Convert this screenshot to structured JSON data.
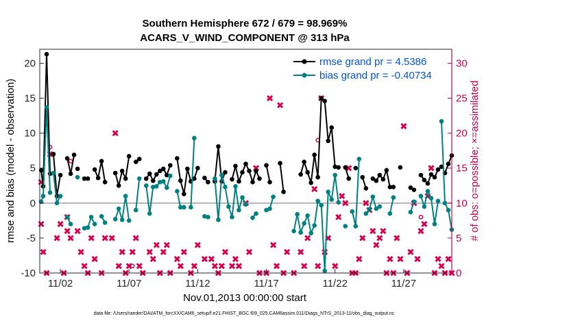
{
  "chart_data": {
    "type": "line",
    "title": "Southern Hemisphere 672 / 679 = 98.969%",
    "subtitle": "ACARS_V_WIND_COMPONENT @ 313 hPa",
    "xlabel": "Nov.01,2013 00:00:00 start",
    "ylabel": "rmse and bias (model - observation)",
    "ylabel_right": "# of obs: o=possible; ×=assimilated",
    "footnote": "data file: /Users/raeder/DAI/ATM_forcXX/CAM6_setup/f.e21.FHIST_BGC.f09_025.CAM6assim.011/Diags_NTrS_2013-11/obs_diag_output.nc",
    "xlim": [
      0.5,
      30.5
    ],
    "ylim": [
      -10,
      22
    ],
    "ylim_right": [
      0,
      32
    ],
    "y_ticks": [
      -10,
      -5,
      0,
      5,
      10,
      15,
      20
    ],
    "y_ticks_right": [
      0,
      5,
      10,
      15,
      20,
      25,
      30
    ],
    "x_ticks": [
      {
        "x": 2,
        "label": "11/02"
      },
      {
        "x": 7,
        "label": "11/07"
      },
      {
        "x": 12,
        "label": "11/12"
      },
      {
        "x": 17,
        "label": "11/17"
      },
      {
        "x": 22,
        "label": "11/22"
      },
      {
        "x": 27,
        "label": "11/27"
      }
    ],
    "zero_line": 0,
    "legend": [
      {
        "name": "rmse",
        "text": "rmse grand pr = 4.5386",
        "color": "#000000"
      },
      {
        "name": "bias",
        "text": "bias grand pr = -0.40734",
        "color": "#008080"
      }
    ],
    "series": [
      {
        "name": "rmse",
        "color": "#000000",
        "segments": [
          [
            [
              0.6,
              4.7
            ],
            [
              0.75,
              2.4
            ],
            [
              1.0,
              21.3
            ],
            [
              1.25,
              4.2
            ]
          ],
          [
            [
              1.5,
              7.0
            ],
            [
              1.75,
              1.0
            ],
            [
              2.0,
              4.0
            ]
          ],
          [
            [
              2.5,
              6.4
            ],
            [
              2.75,
              4.2
            ],
            [
              3.0,
              6.9
            ]
          ],
          [
            [
              3.25,
              4.9
            ]
          ],
          [
            [
              3.75,
              3.5
            ],
            [
              4.0,
              3.5
            ]
          ],
          [
            [
              4.5,
              4.8
            ],
            [
              4.75,
              3.6
            ],
            [
              5.0,
              6.0
            ],
            [
              5.25,
              3.0
            ]
          ],
          [
            [
              6.0,
              4.3
            ],
            [
              6.25,
              2.5
            ],
            [
              6.5,
              4.6
            ],
            [
              6.75,
              3.5
            ],
            [
              7.0,
              6.7
            ]
          ],
          [
            [
              7.5,
              5.9
            ],
            [
              7.75,
              6.3
            ]
          ],
          [
            [
              8.25,
              3.5
            ],
            [
              8.5,
              4.2
            ],
            [
              8.75,
              3.2
            ],
            [
              9.0,
              4.1
            ],
            [
              9.25,
              4.6
            ],
            [
              9.5,
              4.9
            ],
            [
              9.75,
              4.0
            ],
            [
              10.0,
              5.4
            ]
          ],
          [
            [
              10.5,
              6.4
            ],
            [
              10.75,
              3.2
            ],
            [
              11.0,
              1.3
            ],
            [
              11.25,
              4.9
            ],
            [
              11.5,
              3.1
            ],
            [
              11.75,
              3.5
            ],
            [
              12.0,
              5.0
            ]
          ],
          [
            [
              12.5,
              3.6
            ],
            [
              12.75,
              3.0
            ]
          ],
          [
            [
              13.25,
              3.1
            ],
            [
              13.5,
              8.1
            ],
            [
              13.75,
              3.1
            ],
            [
              14.0,
              4.4
            ]
          ],
          [
            [
              14.5,
              3.4
            ],
            [
              14.75,
              5.3
            ],
            [
              15.0,
              3.1
            ],
            [
              15.25,
              4.4
            ],
            [
              15.5,
              5.6
            ],
            [
              15.75,
              4.6
            ],
            [
              16.0,
              3.0
            ],
            [
              16.25,
              4.6
            ],
            [
              16.5,
              3.5
            ]
          ],
          [
            [
              17.0,
              5.4
            ],
            [
              17.25,
              3.0
            ]
          ],
          [
            [
              18.0,
              5.7
            ],
            [
              18.25,
              1.6
            ]
          ],
          [
            [
              19.5,
              4.1
            ],
            [
              19.75,
              5.9
            ],
            [
              20.0,
              4.4
            ],
            [
              20.25,
              2.9
            ],
            [
              20.5,
              6.9
            ],
            [
              20.75,
              3.7
            ],
            [
              21.0,
              15.0
            ],
            [
              21.25,
              14.6
            ],
            [
              21.5,
              8.9
            ],
            [
              21.75,
              10.8
            ],
            [
              22.0,
              5.2
            ],
            [
              22.25,
              5.1
            ]
          ],
          [
            [
              22.75,
              5.1
            ],
            [
              23.0,
              3.5
            ]
          ],
          [
            [
              23.5,
              5.0
            ]
          ],
          [
            [
              24.0,
              3.7
            ],
            [
              24.25,
              2.1
            ]
          ],
          [
            [
              24.75,
              3.5
            ],
            [
              25.0,
              3.2
            ],
            [
              25.25,
              4.0
            ],
            [
              25.5,
              3.4
            ],
            [
              25.75,
              4.7
            ],
            [
              26.0,
              2.3
            ],
            [
              26.25,
              2.3
            ]
          ],
          [
            [
              26.75,
              5.1
            ]
          ],
          [
            [
              27.5,
              2.2
            ],
            [
              27.75,
              1.9
            ]
          ],
          [
            [
              28.25,
              4.0
            ],
            [
              28.5,
              3.3
            ],
            [
              28.75,
              2.8
            ],
            [
              29.0,
              4.1
            ],
            [
              29.25,
              3.7
            ],
            [
              29.5,
              4.8
            ]
          ],
          [
            [
              29.75,
              5.2
            ]
          ],
          [
            [
              30.0,
              4.3
            ],
            [
              30.25,
              5.6
            ],
            [
              30.5,
              6.8
            ]
          ]
        ]
      },
      {
        "name": "bias",
        "color": "#008080",
        "segments": [
          [
            [
              0.6,
              0.2
            ],
            [
              0.75,
              1.0
            ],
            [
              1.0,
              13.7
            ],
            [
              1.25,
              1.5
            ]
          ],
          [
            [
              1.5,
              4.3
            ],
            [
              1.75,
              0.0
            ],
            [
              2.0,
              1.0
            ]
          ],
          [
            [
              2.5,
              -2.0
            ],
            [
              2.75,
              -3.0
            ]
          ],
          [
            [
              3.25,
              3.7
            ]
          ],
          [
            [
              3.75,
              -3.6
            ],
            [
              4.0,
              -3.5
            ],
            [
              4.25,
              -2.0
            ],
            [
              4.5,
              -3.0
            ]
          ],
          [
            [
              5.0,
              -1.9
            ],
            [
              5.25,
              -2.8
            ]
          ],
          [
            [
              6.0,
              -2.3
            ],
            [
              6.25,
              -0.8
            ],
            [
              6.5,
              -2.4
            ],
            [
              6.75,
              1.0
            ],
            [
              7.0,
              -2.5
            ]
          ],
          [
            [
              7.5,
              -1.0
            ],
            [
              7.75,
              3.5
            ]
          ],
          [
            [
              8.25,
              2.5
            ],
            [
              8.5,
              -1.5
            ],
            [
              8.75,
              2.3
            ],
            [
              9.0,
              2.4
            ],
            [
              9.25,
              3.0
            ],
            [
              9.5,
              3.1
            ],
            [
              9.75,
              2.2
            ],
            [
              10.0,
              3.9
            ]
          ],
          [
            [
              10.5,
              1.7
            ],
            [
              10.75,
              -0.6
            ],
            [
              11.0,
              -0.6
            ]
          ],
          [
            [
              11.5,
              -0.6
            ],
            [
              11.75,
              9.3
            ]
          ],
          [
            [
              12.5,
              -1.9
            ],
            [
              12.75,
              -2.0
            ]
          ],
          [
            [
              13.25,
              3.5
            ],
            [
              13.5,
              -2.4
            ],
            [
              13.75,
              4.0
            ],
            [
              14.0,
              2.3
            ],
            [
              14.25,
              -0.5
            ],
            [
              14.5,
              -2.0
            ],
            [
              14.75,
              2.4
            ],
            [
              15.0,
              -1.0
            ],
            [
              15.25,
              0.8
            ],
            [
              15.5,
              -0.2
            ]
          ],
          [
            [
              16.0,
              -2.1
            ],
            [
              16.25,
              -1.5
            ]
          ],
          [
            [
              17.0,
              -1.0
            ],
            [
              17.25,
              -0.8
            ],
            [
              17.5,
              0.9
            ]
          ],
          [
            [
              19.0,
              -4.0
            ],
            [
              19.25,
              -1.6
            ],
            [
              19.5,
              -4.2
            ],
            [
              19.75,
              -2.9
            ],
            [
              20.0,
              -1.8
            ],
            [
              20.25,
              -4.3
            ],
            [
              20.5,
              -3.2
            ],
            [
              20.75,
              0.3
            ],
            [
              21.0,
              -0.3
            ],
            [
              21.25,
              -9.7
            ],
            [
              21.5,
              1.6
            ],
            [
              21.75,
              0.5
            ],
            [
              22.0,
              4.0
            ],
            [
              22.25,
              0.1
            ]
          ],
          [
            [
              22.75,
              -3.3
            ]
          ],
          [
            [
              23.25,
              -1.2
            ],
            [
              23.5,
              -3.3
            ],
            [
              23.75,
              6.3
            ]
          ],
          [
            [
              24.25,
              -1.5
            ],
            [
              24.5,
              -0.9
            ],
            [
              24.75,
              0.9
            ],
            [
              25.0,
              -0.8
            ],
            [
              25.25,
              -0.5
            ]
          ],
          [
            [
              26.0,
              -1.5
            ],
            [
              26.25,
              0.8
            ]
          ],
          [
            [
              27.5,
              -1.3
            ],
            [
              27.75,
              0.2
            ]
          ],
          [
            [
              28.25,
              1.0
            ],
            [
              28.5,
              -0.5
            ],
            [
              28.75,
              1.7
            ],
            [
              29.0,
              0.7
            ],
            [
              29.25,
              -3.0
            ],
            [
              29.5,
              0.3
            ]
          ],
          [
            [
              29.75,
              11.7
            ],
            [
              30.0,
              0.0
            ],
            [
              30.25,
              -1.0
            ],
            [
              30.5,
              -3.8
            ]
          ]
        ]
      }
    ],
    "obs_assimilated": [
      [
        0.6,
        13
      ],
      [
        0.6,
        7
      ],
      [
        0.75,
        3
      ],
      [
        1.0,
        0
      ],
      [
        1.25,
        17
      ],
      [
        1.75,
        5
      ],
      [
        2.0,
        7
      ],
      [
        2.25,
        0
      ],
      [
        2.5,
        8
      ],
      [
        2.5,
        6
      ],
      [
        2.75,
        5
      ],
      [
        3.25,
        6
      ],
      [
        3.5,
        3
      ],
      [
        3.75,
        1
      ],
      [
        4.0,
        0
      ],
      [
        4.25,
        5
      ],
      [
        4.5,
        2
      ],
      [
        5.0,
        0
      ],
      [
        5.25,
        5
      ],
      [
        5.75,
        5
      ],
      [
        6.0,
        20
      ],
      [
        6.25,
        1
      ],
      [
        6.5,
        3
      ],
      [
        6.75,
        0
      ],
      [
        7.0,
        1
      ],
      [
        7.25,
        3
      ],
      [
        7.5,
        5
      ],
      [
        7.75,
        1
      ],
      [
        8.0,
        0
      ],
      [
        8.5,
        3
      ],
      [
        8.75,
        2
      ],
      [
        9.0,
        4
      ],
      [
        9.25,
        0
      ],
      [
        9.5,
        3
      ],
      [
        9.75,
        4
      ],
      [
        10.0,
        0
      ],
      [
        10.5,
        2
      ],
      [
        10.75,
        1
      ],
      [
        11.0,
        3
      ],
      [
        11.5,
        0
      ],
      [
        11.75,
        1
      ],
      [
        12.0,
        4
      ],
      [
        12.5,
        2
      ],
      [
        13.0,
        2
      ],
      [
        13.25,
        1
      ],
      [
        13.5,
        0
      ],
      [
        13.75,
        1
      ],
      [
        14.0,
        3
      ],
      [
        14.5,
        1
      ],
      [
        14.75,
        2
      ],
      [
        15.0,
        1
      ],
      [
        15.5,
        10
      ],
      [
        15.75,
        3
      ],
      [
        16.25,
        15
      ],
      [
        16.5,
        0
      ],
      [
        17.0,
        0
      ],
      [
        17.25,
        25
      ],
      [
        17.5,
        4
      ],
      [
        17.75,
        1
      ],
      [
        18.0,
        24
      ],
      [
        18.25,
        0
      ],
      [
        18.5,
        3
      ],
      [
        19.0,
        0
      ],
      [
        19.5,
        3
      ],
      [
        19.75,
        1
      ],
      [
        20.0,
        5
      ],
      [
        20.5,
        12
      ],
      [
        20.75,
        1
      ],
      [
        21.0,
        25
      ],
      [
        21.25,
        3
      ],
      [
        21.5,
        5
      ],
      [
        22.0,
        1
      ],
      [
        22.25,
        8
      ],
      [
        22.5,
        11
      ],
      [
        22.75,
        10
      ],
      [
        23.0,
        15
      ],
      [
        23.25,
        0
      ],
      [
        23.5,
        0
      ],
      [
        23.75,
        2
      ],
      [
        24.0,
        5
      ],
      [
        24.25,
        10
      ],
      [
        24.5,
        9
      ],
      [
        24.75,
        6
      ],
      [
        25.0,
        4
      ],
      [
        25.25,
        5
      ],
      [
        25.5,
        6
      ],
      [
        25.75,
        0
      ],
      [
        26.0,
        2
      ],
      [
        26.25,
        0
      ],
      [
        26.5,
        5
      ],
      [
        26.75,
        2
      ],
      [
        27.0,
        21
      ],
      [
        27.25,
        0
      ],
      [
        27.5,
        3
      ],
      [
        27.75,
        10
      ],
      [
        28.0,
        2
      ],
      [
        28.25,
        6
      ],
      [
        28.5,
        7
      ],
      [
        28.75,
        11
      ],
      [
        29.0,
        15
      ],
      [
        29.25,
        0
      ],
      [
        29.5,
        2
      ],
      [
        29.75,
        1
      ],
      [
        30.0,
        0
      ],
      [
        30.25,
        2
      ],
      [
        30.5,
        0
      ]
    ],
    "obs_possible": [
      [
        1.25,
        18
      ],
      [
        2.75,
        16
      ],
      [
        7.25,
        1
      ],
      [
        20.75,
        19
      ],
      [
        28.25,
        8
      ]
    ]
  }
}
